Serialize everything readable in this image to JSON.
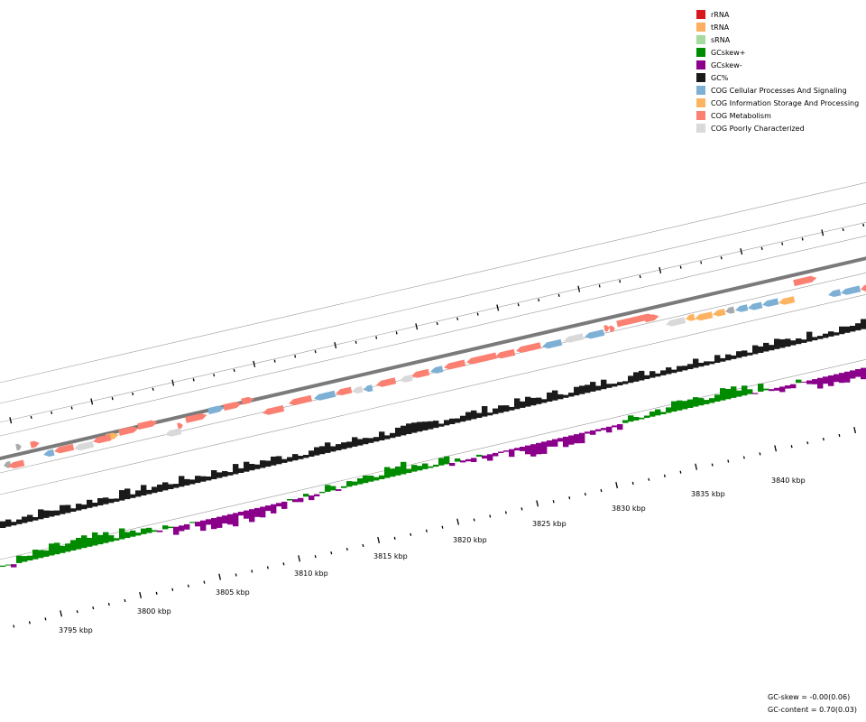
{
  "legend": [
    {
      "label": "rRNA",
      "color": "#d7191c"
    },
    {
      "label": "tRNA",
      "color": "#fdae61"
    },
    {
      "label": "sRNA",
      "color": "#a6dba0"
    },
    {
      "label": "GCskew+",
      "color": "#008b00"
    },
    {
      "label": "GCskew-",
      "color": "#8b008b"
    },
    {
      "label": "GC%",
      "color": "#1a1a1a"
    },
    {
      "label": "COG Cellular Processes And Signaling",
      "color": "#7eb0d5"
    },
    {
      "label": "COG Information Storage And Processing",
      "color": "#fdb462"
    },
    {
      "label": "COG Metabolism",
      "color": "#fb8072"
    },
    {
      "label": "COG Poorly Characterized",
      "color": "#d9d9d9"
    }
  ],
  "stats": {
    "gc_skew": "GC-skew = -0.00(0.06)",
    "gc_content": "GC-content = 0.70(0.03)"
  },
  "axis": {
    "unit": "kbp",
    "tick_labels": [
      "3795 kbp",
      "3800 kbp",
      "3805 kbp",
      "3810 kbp",
      "3815 kbp",
      "3820 kbp",
      "3825 kbp",
      "3830 kbp",
      "3835 kbp",
      "3840 kbp"
    ]
  },
  "features": {
    "top_strand": [
      {
        "category": "Poorly Characterized",
        "color": "#aaaaaa"
      },
      {
        "category": "Metabolism",
        "color": "#fb8072"
      },
      {
        "category": "Metabolism",
        "color": "#fb8072"
      },
      {
        "category": "Information Storage And Processing",
        "color": "#fdb462"
      },
      {
        "category": "Metabolism",
        "color": "#fb8072"
      },
      {
        "category": "Metabolism",
        "color": "#fb8072"
      },
      {
        "category": "Cellular Processes And Signaling",
        "color": "#7eb0d5"
      },
      {
        "category": "Metabolism",
        "color": "#fb8072"
      },
      {
        "category": "Metabolism",
        "color": "#fb8072"
      },
      {
        "category": "Metabolism",
        "color": "#fb8072"
      },
      {
        "category": "Metabolism",
        "color": "#fb8072"
      },
      {
        "category": "Metabolism",
        "color": "#fb8072"
      },
      {
        "category": "Metabolism",
        "color": "#fb8072"
      },
      {
        "category": "Metabolism",
        "color": "#fb8072"
      },
      {
        "category": "Metabolism",
        "color": "#fb8072"
      }
    ],
    "bottom_strand": [
      {
        "category": "Poorly Characterized",
        "color": "#aaaaaa"
      },
      {
        "category": "Metabolism",
        "color": "#fb8072"
      },
      {
        "category": "Cellular Processes And Signaling",
        "color": "#7eb0d5"
      },
      {
        "category": "Metabolism",
        "color": "#fb8072"
      },
      {
        "category": "Poorly Characterized",
        "color": "#d9d9d9"
      },
      {
        "category": "Metabolism",
        "color": "#fb8072"
      },
      {
        "category": "Poorly Characterized",
        "color": "#d9d9d9"
      },
      {
        "category": "Metabolism",
        "color": "#fb8072"
      },
      {
        "category": "Metabolism",
        "color": "#fb8072"
      },
      {
        "category": "Cellular Processes And Signaling",
        "color": "#7eb0d5"
      },
      {
        "category": "Metabolism",
        "color": "#fb8072"
      },
      {
        "category": "Poorly Characterized",
        "color": "#d9d9d9"
      },
      {
        "category": "Cellular Processes And Signaling",
        "color": "#7eb0d5"
      },
      {
        "category": "Metabolism",
        "color": "#fb8072"
      },
      {
        "category": "Poorly Characterized",
        "color": "#d9d9d9"
      },
      {
        "category": "Metabolism",
        "color": "#fb8072"
      },
      {
        "category": "Cellular Processes And Signaling",
        "color": "#7eb0d5"
      },
      {
        "category": "Metabolism",
        "color": "#fb8072"
      },
      {
        "category": "Metabolism",
        "color": "#fb8072"
      },
      {
        "category": "Metabolism",
        "color": "#fb8072"
      },
      {
        "category": "Metabolism",
        "color": "#fb8072"
      },
      {
        "category": "Cellular Processes And Signaling",
        "color": "#7eb0d5"
      },
      {
        "category": "Poorly Characterized",
        "color": "#d9d9d9"
      },
      {
        "category": "Cellular Processes And Signaling",
        "color": "#7eb0d5"
      },
      {
        "category": "Poorly Characterized",
        "color": "#d9d9d9"
      },
      {
        "category": "Information Storage And Processing",
        "color": "#fdb462"
      },
      {
        "category": "Information Storage And Processing",
        "color": "#fdb462"
      },
      {
        "category": "Information Storage And Processing",
        "color": "#fdb462"
      },
      {
        "category": "Poorly Characterized",
        "color": "#aaaaaa"
      },
      {
        "category": "Cellular Processes And Signaling",
        "color": "#7eb0d5"
      },
      {
        "category": "Cellular Processes And Signaling",
        "color": "#7eb0d5"
      },
      {
        "category": "Cellular Processes And Signaling",
        "color": "#7eb0d5"
      },
      {
        "category": "Information Storage And Processing",
        "color": "#fdb462"
      },
      {
        "category": "Cellular Processes And Signaling",
        "color": "#7eb0d5"
      },
      {
        "category": "Cellular Processes And Signaling",
        "color": "#7eb0d5"
      },
      {
        "category": "Metabolism",
        "color": "#fb8072"
      }
    ]
  },
  "tracks": {
    "gc_color": "#1a1a1a",
    "skew_pos_color": "#008b00",
    "skew_neg_color": "#8b008b",
    "backbone_color": "#7a7a7a",
    "ring_color": "#999999"
  }
}
